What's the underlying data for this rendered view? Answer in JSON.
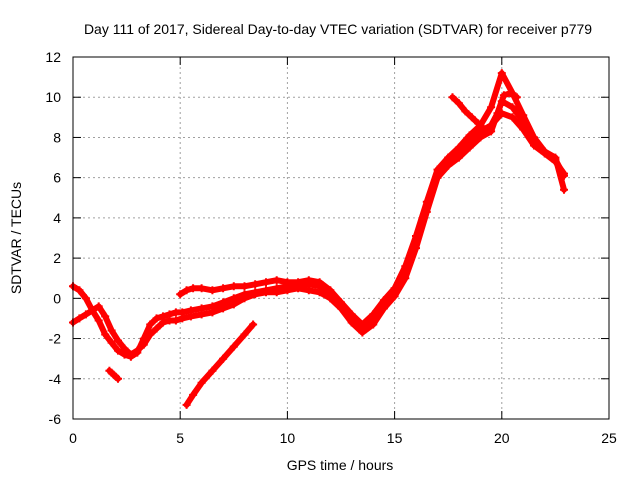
{
  "chart_data": {
    "type": "scatter",
    "title": "Day 111 of 2017, Sidereal Day-to-day VTEC variation (SDTVAR) for receiver p779",
    "xlabel": "GPS time / hours",
    "ylabel": "SDTVAR / TECUs",
    "xlim": [
      0,
      25
    ],
    "ylim": [
      -6,
      12
    ],
    "xticks": [
      "0",
      "5",
      "10",
      "15",
      "20",
      "25"
    ],
    "yticks": [
      "-6",
      "-4",
      "-2",
      "0",
      "2",
      "4",
      "6",
      "8",
      "10",
      "12"
    ],
    "grid": true,
    "color": "#ff0000",
    "series": [
      {
        "x": [
          0.0,
          0.3,
          0.6,
          0.9,
          1.2,
          1.5,
          1.8,
          2.1,
          2.4,
          2.7,
          3.0,
          3.3,
          3.6,
          3.9,
          4.2,
          4.5,
          4.8,
          5.1,
          5.5,
          6.0,
          6.5,
          7.0,
          7.5,
          8.0,
          8.5,
          9.0,
          9.5,
          10.0,
          10.5,
          11.0,
          11.5,
          12.0,
          12.5,
          13.0,
          13.5,
          14.0,
          14.5,
          15.0,
          15.5,
          16.0,
          16.5,
          17.0,
          17.5,
          18.0,
          18.5,
          19.0,
          19.5,
          20.0,
          20.5,
          21.0,
          21.5,
          22.0,
          22.5,
          22.9
        ],
        "y": [
          0.6,
          0.4,
          0.0,
          -0.6,
          -1.1,
          -1.8,
          -2.2,
          -2.6,
          -2.8,
          -2.9,
          -2.7,
          -2.0,
          -1.3,
          -1.0,
          -0.9,
          -0.8,
          -0.7,
          -0.7,
          -0.6,
          -0.5,
          -0.4,
          -0.2,
          0.0,
          0.2,
          0.3,
          0.4,
          0.5,
          0.6,
          0.7,
          0.7,
          0.6,
          0.3,
          -0.3,
          -1.0,
          -1.5,
          -1.0,
          -0.3,
          0.3,
          1.3,
          2.8,
          4.5,
          6.2,
          6.9,
          7.3,
          7.8,
          8.3,
          8.6,
          9.2,
          9.0,
          8.4,
          7.6,
          7.2,
          6.8,
          6.2
        ]
      },
      {
        "x": [
          0.0,
          0.3,
          0.6,
          0.9,
          1.2,
          1.5,
          1.8,
          2.1,
          2.4,
          2.7,
          3.0,
          3.3,
          3.6,
          3.9,
          4.2,
          4.5,
          4.8,
          5.1,
          5.5,
          6.0,
          6.5,
          7.0,
          7.5,
          8.0,
          8.5,
          9.0,
          9.5,
          10.0,
          10.5,
          11.0,
          11.5,
          12.0,
          12.5,
          13.0,
          13.5,
          14.0,
          14.5,
          15.0,
          15.5,
          16.0,
          16.5,
          17.0,
          17.5,
          18.0,
          18.5,
          19.0,
          19.5,
          20.0,
          20.5,
          21.0,
          21.5,
          22.0,
          22.5,
          22.9
        ],
        "y": [
          -1.2,
          -1.0,
          -0.8,
          -0.6,
          -0.4,
          -0.9,
          -1.6,
          -2.1,
          -2.5,
          -2.8,
          -2.6,
          -2.3,
          -1.8,
          -1.5,
          -1.2,
          -1.1,
          -1.1,
          -1.0,
          -0.9,
          -0.8,
          -0.7,
          -0.5,
          -0.3,
          0.0,
          0.2,
          0.3,
          0.3,
          0.4,
          0.5,
          0.4,
          0.3,
          0.0,
          -0.5,
          -1.2,
          -1.7,
          -1.3,
          -0.5,
          0.1,
          1.0,
          2.5,
          4.3,
          6.0,
          6.6,
          7.0,
          7.5,
          8.0,
          8.3,
          9.8,
          9.5,
          8.8,
          7.8,
          7.3,
          6.9,
          6.1
        ]
      },
      {
        "x": [
          5.0,
          5.3,
          5.6,
          6.0,
          6.5,
          7.0,
          7.5,
          8.0,
          8.5,
          9.0,
          9.5,
          10.0,
          10.5,
          11.0,
          11.5,
          12.0,
          12.5,
          13.0,
          13.5,
          14.0,
          14.5,
          15.0,
          15.5,
          16.0,
          16.5,
          17.0,
          17.5,
          18.0,
          18.5,
          19.0,
          19.5,
          20.0,
          20.5,
          21.0,
          21.5,
          22.0,
          22.5,
          22.9
        ],
        "y": [
          0.2,
          0.4,
          0.5,
          0.5,
          0.4,
          0.5,
          0.6,
          0.6,
          0.7,
          0.8,
          0.9,
          0.8,
          0.8,
          0.9,
          0.8,
          0.4,
          -0.2,
          -0.8,
          -1.3,
          -0.8,
          -0.1,
          0.5,
          1.6,
          3.1,
          4.8,
          6.4,
          7.0,
          7.5,
          8.1,
          8.6,
          9.5,
          11.2,
          10.2,
          9.1,
          8.0,
          7.3,
          7.0,
          5.4
        ]
      },
      {
        "x": [
          17.7,
          18.0,
          18.3,
          18.6,
          18.9,
          19.2,
          19.5,
          19.8,
          20.1,
          20.4,
          20.7
        ],
        "y": [
          10.0,
          9.7,
          9.3,
          9.0,
          8.7,
          8.4,
          8.6,
          9.2,
          10.1,
          10.2,
          10.0
        ]
      },
      {
        "x": [
          1.7,
          1.8,
          1.9,
          2.0,
          2.1
        ],
        "y": [
          -3.6,
          -3.7,
          -3.8,
          -3.9,
          -4.0
        ]
      },
      {
        "x": [
          5.3,
          5.6,
          6.0,
          6.5,
          7.0,
          7.5,
          8.0,
          8.4
        ],
        "y": [
          -5.3,
          -4.8,
          -4.2,
          -3.6,
          -3.0,
          -2.4,
          -1.8,
          -1.3
        ]
      }
    ]
  }
}
